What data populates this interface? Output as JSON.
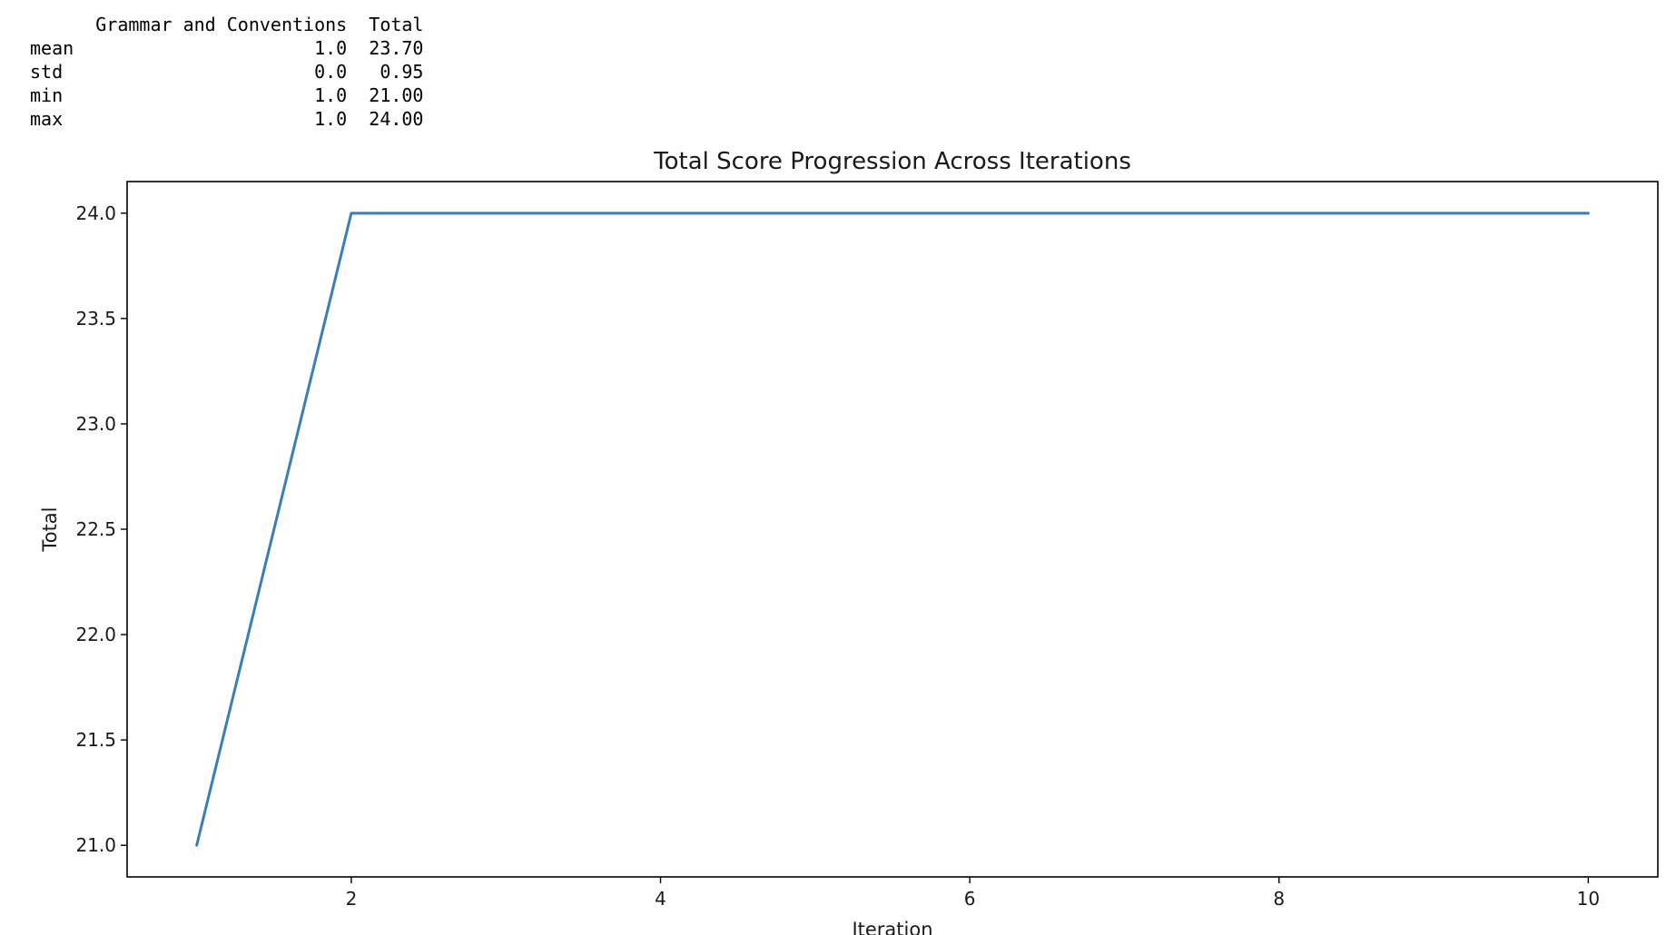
{
  "stats_table": {
    "header": [
      "",
      "Grammar and Conventions",
      "Total"
    ],
    "rows": [
      [
        "mean",
        "1.0",
        "23.70"
      ],
      [
        "std",
        "0.0",
        "0.95"
      ],
      [
        "min",
        "1.0",
        "21.00"
      ],
      [
        "max",
        "1.0",
        "24.00"
      ]
    ]
  },
  "chart_data": {
    "type": "line",
    "title": "Total Score Progression Across Iterations",
    "xlabel": "Iteration",
    "ylabel": "Total",
    "x": [
      1,
      2,
      3,
      4,
      5,
      6,
      7,
      8,
      9,
      10
    ],
    "series": [
      {
        "values": [
          21.0,
          24.0,
          24.0,
          24.0,
          24.0,
          24.0,
          24.0,
          24.0,
          24.0,
          24.0
        ],
        "color": "#3a7db8"
      }
    ],
    "xlim": [
      0.55,
      10.45
    ],
    "ylim": [
      20.85,
      24.15
    ],
    "xticks": [
      2,
      4,
      6,
      8,
      10
    ],
    "xtick_labels": [
      "2",
      "4",
      "6",
      "8",
      "10"
    ],
    "yticks": [
      21.0,
      21.5,
      22.0,
      22.5,
      23.0,
      23.5,
      24.0
    ],
    "ytick_labels": [
      "21.0",
      "21.5",
      "22.0",
      "22.5",
      "23.0",
      "23.5",
      "24.0"
    ],
    "grid": false,
    "legend": false
  }
}
